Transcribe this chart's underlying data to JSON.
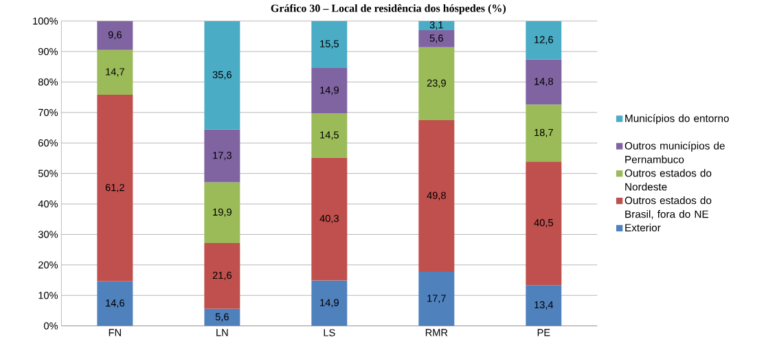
{
  "chart_data": {
    "type": "bar",
    "title": "Gráfico 30 – Local de residência dos hóspedes (%)",
    "categories": [
      "FN",
      "LN",
      "LS",
      "RMR",
      "PE"
    ],
    "stacked": true,
    "series": [
      {
        "name": "Exterior",
        "color": "#4f81bd",
        "values": [
          14.6,
          5.6,
          14.9,
          17.7,
          13.4
        ],
        "value_labels": [
          "14,6",
          "5,6",
          "14,9",
          "17,7",
          "13,4"
        ]
      },
      {
        "name": "Outros estados do Brasil, fora do NE",
        "color": "#c0504d",
        "values": [
          61.2,
          21.6,
          40.3,
          49.8,
          40.5
        ],
        "value_labels": [
          "61,2",
          "21,6",
          "40,3",
          "49,8",
          "40,5"
        ]
      },
      {
        "name": "Outros estados do Nordeste",
        "color": "#9bbb59",
        "values": [
          14.7,
          19.9,
          14.5,
          23.9,
          18.7
        ],
        "value_labels": [
          "14,7",
          "19,9",
          "14,5",
          "23,9",
          "18,7"
        ]
      },
      {
        "name": "Outros municípios de Pernambuco",
        "color": "#8064a2",
        "values": [
          9.6,
          17.3,
          14.9,
          5.6,
          14.8
        ],
        "value_labels": [
          "9,6",
          "17,3",
          "14,9",
          "5,6",
          "14,8"
        ]
      },
      {
        "name": "Municípios do entorno",
        "color": "#4bacc6",
        "values": [
          null,
          35.6,
          15.5,
          3.1,
          12.6
        ],
        "value_labels": [
          null,
          "35,6",
          "15,5",
          "3,1",
          "12,6"
        ]
      }
    ],
    "ylim": [
      0,
      100
    ],
    "yticks": [
      {
        "value": 0,
        "label": "0%"
      },
      {
        "value": 10,
        "label": "10%"
      },
      {
        "value": 20,
        "label": "20%"
      },
      {
        "value": 30,
        "label": "30%"
      },
      {
        "value": 40,
        "label": "40%"
      },
      {
        "value": 50,
        "label": "50%"
      },
      {
        "value": 60,
        "label": "60%"
      },
      {
        "value": 70,
        "label": "70%"
      },
      {
        "value": 80,
        "label": "80%"
      },
      {
        "value": 90,
        "label": "90%"
      },
      {
        "value": 100,
        "label": "100%"
      }
    ],
    "grid": "y",
    "legend": "right"
  }
}
